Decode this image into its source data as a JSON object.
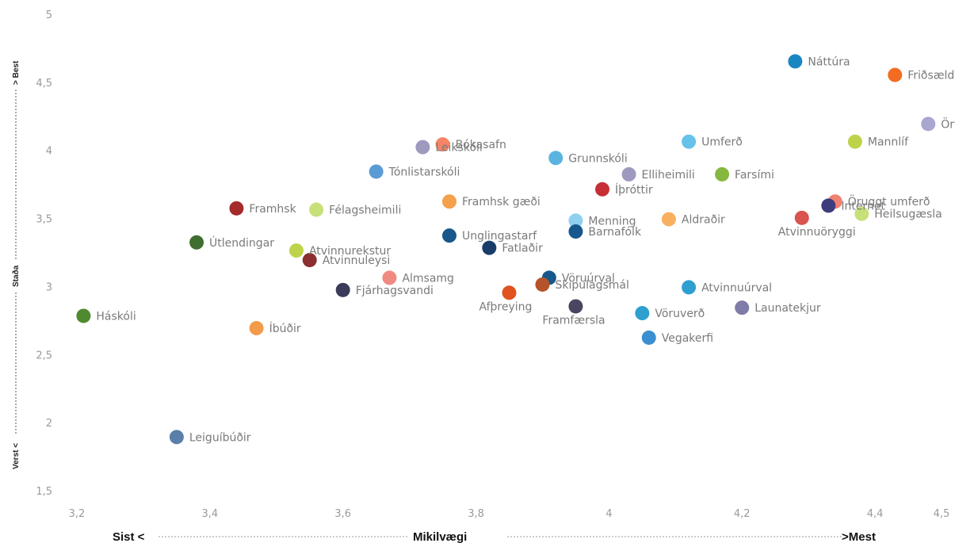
{
  "chart_data": {
    "type": "scatter",
    "xlim": [
      3.2,
      4.5
    ],
    "ylim": [
      1.5,
      5
    ],
    "x_ticks": [
      "3,2",
      "3,4",
      "3,6",
      "3,8",
      "4",
      "4,2",
      "4,4",
      "4,5"
    ],
    "x_tick_values": [
      3.2,
      3.4,
      3.6,
      3.8,
      4.0,
      4.2,
      4.4,
      4.5
    ],
    "y_ticks": [
      "1,5",
      "2",
      "2,5",
      "3",
      "3,5",
      "4",
      "4,5",
      "5"
    ],
    "y_tick_values": [
      1.5,
      2,
      2.5,
      3,
      3.5,
      4,
      4.5,
      5
    ],
    "grid": false,
    "x_axis": {
      "left": "Sist <",
      "center": "Mikilvægi",
      "right": ">Mest"
    },
    "y_axis": {
      "bottom": "Verst <",
      "center": "Staða",
      "top": "> Best"
    },
    "points": [
      {
        "label": "Náttúra",
        "x": 4.28,
        "y": 4.66,
        "color": "#1a86c1"
      },
      {
        "label": "Friðsæld",
        "x": 4.43,
        "y": 4.56,
        "color": "#f26d21"
      },
      {
        "label": "Öryggi",
        "x": 4.48,
        "y": 4.2,
        "color": "#a9a6d0"
      },
      {
        "label": "Mannlíf",
        "x": 4.37,
        "y": 4.07,
        "color": "#bed34a"
      },
      {
        "label": "Umferð",
        "x": 4.12,
        "y": 4.07,
        "color": "#66c2ea"
      },
      {
        "label": "Bókasafn",
        "x": 3.75,
        "y": 4.05,
        "color": "#f58566"
      },
      {
        "label": "Leikskóli",
        "x": 3.72,
        "y": 4.03,
        "color": "#9e99bf"
      },
      {
        "label": "Grunnskóli",
        "x": 3.92,
        "y": 3.95,
        "color": "#5ab4e0"
      },
      {
        "label": "Tónlistarskóli",
        "x": 3.65,
        "y": 3.85,
        "color": "#5b9bd5"
      },
      {
        "label": "Elliheimili",
        "x": 4.03,
        "y": 3.83,
        "color": "#9e99bf"
      },
      {
        "label": "Farsími",
        "x": 4.17,
        "y": 3.83,
        "color": "#86b83f"
      },
      {
        "label": "Íþróttir",
        "x": 3.99,
        "y": 3.72,
        "color": "#c62f36"
      },
      {
        "label": "Öruggt umferð",
        "x": 4.34,
        "y": 3.63,
        "color": "#f08070"
      },
      {
        "label": "Framhsk gæði",
        "x": 3.76,
        "y": 3.63,
        "color": "#f5a04a"
      },
      {
        "label": "Internet",
        "x": 4.33,
        "y": 3.6,
        "color": "#3e3c7c"
      },
      {
        "label": "Framhsk",
        "x": 3.44,
        "y": 3.58,
        "color": "#a52a2a"
      },
      {
        "label": "Félagsheimili",
        "x": 3.56,
        "y": 3.57,
        "color": "#c7e07a"
      },
      {
        "label": "Heilsugæsla",
        "x": 4.38,
        "y": 3.54,
        "color": "#c7e07a"
      },
      {
        "label": "Atvinnuöryggi",
        "x": 4.29,
        "y": 3.51,
        "color": "#d9534f"
      },
      {
        "label": "Aldraðir",
        "x": 4.09,
        "y": 3.5,
        "color": "#f8b060"
      },
      {
        "label": "Menning",
        "x": 3.95,
        "y": 3.49,
        "color": "#8fd0f0"
      },
      {
        "label": "Barnafólk",
        "x": 3.95,
        "y": 3.41,
        "color": "#17578c"
      },
      {
        "label": "Unglingastarf",
        "x": 3.76,
        "y": 3.38,
        "color": "#17578c"
      },
      {
        "label": "Útlendingar",
        "x": 3.38,
        "y": 3.33,
        "color": "#3f6e2e"
      },
      {
        "label": "Fatlaðir",
        "x": 3.82,
        "y": 3.29,
        "color": "#1a3c6b"
      },
      {
        "label": "Atvinnurekstur",
        "x": 3.53,
        "y": 3.27,
        "color": "#bed34a"
      },
      {
        "label": "Atvinnuleysi",
        "x": 3.55,
        "y": 3.2,
        "color": "#8b2e2e"
      },
      {
        "label": "Almsamg",
        "x": 3.67,
        "y": 3.07,
        "color": "#f08a80"
      },
      {
        "label": "Vöruúrval",
        "x": 3.91,
        "y": 3.07,
        "color": "#17578c"
      },
      {
        "label": "Skipulagsmál",
        "x": 3.9,
        "y": 3.02,
        "color": "#b5532a"
      },
      {
        "label": "Atvinnuúrval",
        "x": 4.12,
        "y": 3.0,
        "color": "#2f9fd0"
      },
      {
        "label": "Fjárhagsvandi",
        "x": 3.6,
        "y": 2.98,
        "color": "#3a3a5a"
      },
      {
        "label": "Afþreying",
        "x": 3.85,
        "y": 2.96,
        "color": "#e0521e"
      },
      {
        "label": "Framfærsla",
        "x": 3.95,
        "y": 2.86,
        "color": "#4a4560"
      },
      {
        "label": "Launatekjur",
        "x": 4.2,
        "y": 2.85,
        "color": "#7f7ca8"
      },
      {
        "label": "Vöruverð",
        "x": 4.05,
        "y": 2.81,
        "color": "#2f9fd0"
      },
      {
        "label": "Háskóli",
        "x": 3.21,
        "y": 2.79,
        "color": "#4f8a2e"
      },
      {
        "label": "Íbúðir",
        "x": 3.47,
        "y": 2.7,
        "color": "#f39b4a"
      },
      {
        "label": "Vegakerfi",
        "x": 4.06,
        "y": 2.63,
        "color": "#3a8fd0"
      },
      {
        "label": "Leiguíbúðir",
        "x": 3.35,
        "y": 1.9,
        "color": "#5a7fa8"
      }
    ]
  }
}
